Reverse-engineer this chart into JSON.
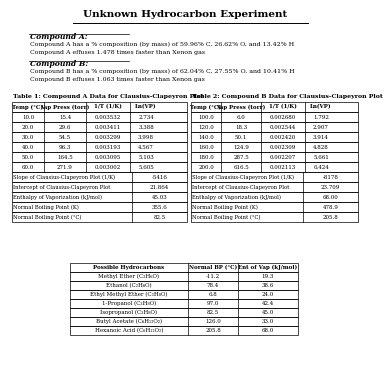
{
  "title": "Unknown Hydrocarbon Experiment",
  "compound_a_header": "Compound A:",
  "compound_a_line1": "Compound A has a % composition (by mass) of 59.96% C, 26.62% O, and 13.42% H",
  "compound_a_line2": "Compound A effuses 1.478 times faster than Xenon gas",
  "compound_b_header": "Compound B:",
  "compound_b_line1": "Compound B has a % composition (by mass) of 62.04% C, 27.55% O, and 10.41% H",
  "compound_b_line2": "Compound B effuses 1.063 times faster than Xenon gas",
  "table1_title": "Table 1: Compound A Data for Clausius-Clapeyron Plot",
  "table1_headers": [
    "Temp (°C)",
    "Vap Press (torr)",
    "1/T (1/K)",
    "Ln(VP)"
  ],
  "table1_data": [
    [
      "10.0",
      "15.4",
      "0.003532",
      "2.734"
    ],
    [
      "20.0",
      "29.6",
      "0.003411",
      "3.388"
    ],
    [
      "30.0",
      "54.5",
      "0.003299",
      "3.998"
    ],
    [
      "40.0",
      "96.3",
      "0.003193",
      "4.567"
    ],
    [
      "50.0",
      "164.5",
      "0.003095",
      "5.103"
    ],
    [
      "60.0",
      "271.9",
      "0.003002",
      "5.605"
    ]
  ],
  "table1_summary_labels": [
    "Slope of Clausius-Clapeyron Plot (1/K)",
    "Intercept of Clausius-Clapeyron Plot",
    "Enthalpy of Vaporization (kJ/mol)",
    "Normal Boiling Point (K)",
    "Normal Boiling Point (°C)"
  ],
  "table1_summary_values": [
    "-5416",
    "21.864",
    "45.03",
    "355.6",
    "82.5"
  ],
  "table2_title": "Table 2: Compound B Data for Clausius-Clapeyron Plot",
  "table2_headers": [
    "Temp (°C)",
    "Vap Press (torr)",
    "1/T (1/K)",
    "Ln(VP)"
  ],
  "table2_data": [
    [
      "100.0",
      "6.0",
      "0.002680",
      "1.792"
    ],
    [
      "120.0",
      "18.3",
      "0.002544",
      "2.907"
    ],
    [
      "140.0",
      "50.1",
      "0.002420",
      "3.914"
    ],
    [
      "160.0",
      "124.9",
      "0.002309",
      "4.828"
    ],
    [
      "180.0",
      "287.5",
      "0.002207",
      "5.661"
    ],
    [
      "200.0",
      "616.5",
      "0.002113",
      "6.424"
    ]
  ],
  "table2_summary_labels": [
    "Slope of Clausius-Clapeyron Plot (1/K)",
    "Intercept of Clausius-Clapeyron Plot",
    "Enthalpy of Vaporization (kJ/mol)",
    "Normal Boiling Point (K)",
    "Normal Boiling Point (°C)"
  ],
  "table2_summary_values": [
    "-8178",
    "23.709",
    "68.00",
    "478.9",
    "205.8"
  ],
  "possible_table_title": "Possible Hydrocarbons",
  "possible_table_headers": [
    "Possible Hydrocarbons",
    "Normal BP (°C)",
    "Ent of Vap (kJ/mol)"
  ],
  "possible_table_data": [
    [
      "Methyl Ether (C₂H₆O)",
      "-11.2",
      "19.3"
    ],
    [
      "Ethanol (C₂H₆O)",
      "78.4",
      "38.6"
    ],
    [
      "Ethyl Methyl Ether (C₃H₈O)",
      "6.8",
      "24.0"
    ],
    [
      "1-Propanol (C₃H₈O)",
      "97.0",
      "42.4"
    ],
    [
      "Isopropanol (C₃H₈O)",
      "82.5",
      "45.0"
    ],
    [
      "Butyl Acetate (C₆H₁₂O₂)",
      "126.0",
      "33.0"
    ],
    [
      "Hexanoic Acid (C₆H₁₂O₂)",
      "205.8",
      "68.0"
    ]
  ]
}
